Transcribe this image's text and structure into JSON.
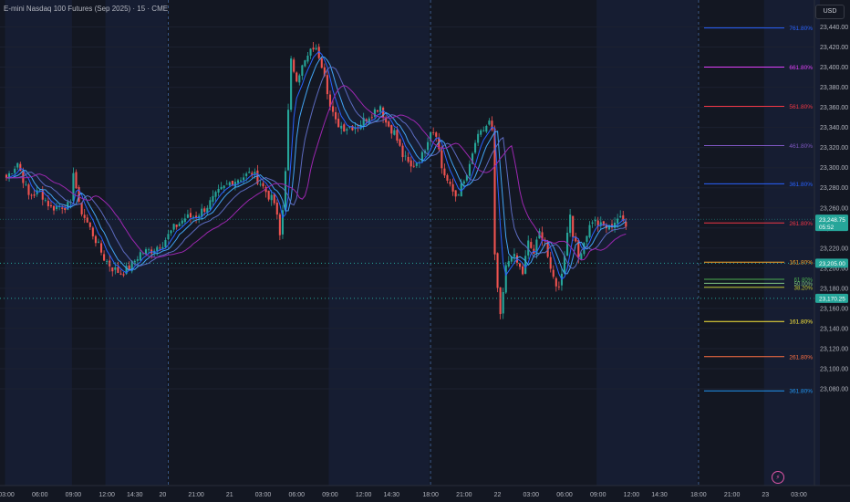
{
  "header": {
    "title": "E-mini Nasdaq 100 Futures (Sep 2025) · 15 · CME",
    "currency_button": "USD",
    "alert_icon": "⚡"
  },
  "colors": {
    "bg": "#131722",
    "session": "#161d32",
    "grid": "#1e2433",
    "up": "#26a69a",
    "down": "#ef5350",
    "text": "#b2b5be"
  },
  "chart_data": {
    "type": "candlestick",
    "ylim": [
      23070,
      23450
    ],
    "y_ticks": [
      "23,440.00",
      "23,420.00",
      "23,400.00",
      "23,380.00",
      "23,360.00",
      "23,340.00",
      "23,320.00",
      "23,300.00",
      "23,280.00",
      "23,260.00",
      "23,240.00",
      "23,220.00",
      "23,200.00",
      "23,180.00",
      "23,160.00",
      "23,140.00",
      "23,120.00",
      "23,100.00",
      "23,080.00"
    ],
    "x_ticks": [
      {
        "label": "03:00",
        "t": 0
      },
      {
        "label": "06:00",
        "t": 12
      },
      {
        "label": "09:00",
        "t": 24
      },
      {
        "label": "12:00",
        "t": 36
      },
      {
        "label": "14:30",
        "t": 46
      },
      {
        "label": "20",
        "t": 56
      },
      {
        "label": "21:00",
        "t": 68
      },
      {
        "label": "21",
        "t": 80
      },
      {
        "label": "03:00",
        "t": 92
      },
      {
        "label": "06:00",
        "t": 104
      },
      {
        "label": "09:00",
        "t": 116
      },
      {
        "label": "12:00",
        "t": 128
      },
      {
        "label": "14:30",
        "t": 138
      },
      {
        "label": "18:00",
        "t": 152
      },
      {
        "label": "21:00",
        "t": 164
      },
      {
        "label": "22",
        "t": 176
      },
      {
        "label": "03:00",
        "t": 188
      },
      {
        "label": "06:00",
        "t": 200
      },
      {
        "label": "09:00",
        "t": 212
      },
      {
        "label": "12:00",
        "t": 224
      },
      {
        "label": "14:30",
        "t": 234
      },
      {
        "label": "18:00",
        "t": 248
      },
      {
        "label": "21:00",
        "t": 260
      },
      {
        "label": "23",
        "t": 272
      },
      {
        "label": "03:00",
        "t": 284
      }
    ],
    "session_bands": [
      [
        0,
        24
      ],
      [
        36,
        58
      ],
      [
        116,
        152
      ],
      [
        212,
        248
      ],
      [
        272,
        292
      ]
    ],
    "day_lines": [
      58,
      152,
      248
    ],
    "trend_path": [
      [
        0,
        23290
      ],
      [
        4,
        23305
      ],
      [
        8,
        23272
      ],
      [
        12,
        23276
      ],
      [
        16,
        23260
      ],
      [
        20,
        23262
      ],
      [
        23,
        23262
      ],
      [
        24,
        23298
      ],
      [
        26,
        23262
      ],
      [
        29,
        23245
      ],
      [
        32,
        23228
      ],
      [
        35,
        23210
      ],
      [
        38,
        23200
      ],
      [
        41,
        23195
      ],
      [
        44,
        23200
      ],
      [
        48,
        23215
      ],
      [
        52,
        23218
      ],
      [
        56,
        23225
      ],
      [
        60,
        23240
      ],
      [
        64,
        23250
      ],
      [
        68,
        23252
      ],
      [
        72,
        23262
      ],
      [
        76,
        23275
      ],
      [
        80,
        23285
      ],
      [
        84,
        23290
      ],
      [
        88,
        23295
      ],
      [
        91,
        23285
      ],
      [
        94,
        23272
      ],
      [
        96,
        23265
      ],
      [
        97,
        23250
      ],
      [
        98,
        23232
      ],
      [
        99,
        23258
      ],
      [
        100,
        23300
      ],
      [
        101,
        23355
      ],
      [
        102,
        23405
      ],
      [
        104,
        23390
      ],
      [
        108,
        23410
      ],
      [
        110,
        23420
      ],
      [
        112,
        23412
      ],
      [
        114,
        23395
      ],
      [
        116,
        23360
      ],
      [
        118,
        23345
      ],
      [
        121,
        23340
      ],
      [
        126,
        23342
      ],
      [
        130,
        23352
      ],
      [
        134,
        23362
      ],
      [
        136,
        23345
      ],
      [
        139,
        23335
      ],
      [
        142,
        23312
      ],
      [
        145,
        23300
      ],
      [
        149,
        23312
      ],
      [
        152,
        23338
      ],
      [
        154,
        23335
      ],
      [
        156,
        23300
      ],
      [
        159,
        23280
      ],
      [
        161,
        23272
      ],
      [
        164,
        23285
      ],
      [
        166,
        23300
      ],
      [
        168,
        23325
      ],
      [
        171,
        23338
      ],
      [
        173,
        23345
      ],
      [
        174,
        23335
      ],
      [
        175,
        23210
      ],
      [
        177,
        23150
      ],
      [
        179,
        23200
      ],
      [
        181,
        23215
      ],
      [
        183,
        23205
      ],
      [
        185,
        23195
      ],
      [
        187,
        23225
      ],
      [
        189,
        23215
      ],
      [
        191,
        23235
      ],
      [
        193,
        23228
      ],
      [
        195,
        23195
      ],
      [
        198,
        23180
      ],
      [
        200,
        23215
      ],
      [
        202,
        23255
      ],
      [
        203,
        23235
      ],
      [
        205,
        23210
      ],
      [
        208,
        23235
      ],
      [
        210,
        23248
      ],
      [
        213,
        23242
      ],
      [
        216,
        23240
      ],
      [
        219,
        23250
      ],
      [
        222,
        23245
      ]
    ],
    "ema_series": [
      {
        "color": "#2962ff",
        "lag": 6,
        "smooth": 0.42
      },
      {
        "color": "#42a5f5",
        "lag": 10,
        "smooth": 0.3
      },
      {
        "color": "#5c6bc0",
        "lag": 16,
        "smooth": 0.2
      },
      {
        "color": "#9c27b0",
        "lag": 30,
        "smooth": 0.12
      }
    ],
    "fib_upper": [
      {
        "label": "761.80%",
        "price": 23439,
        "color": "#2962ff"
      },
      {
        "label": "661.80%",
        "price": 23400,
        "color": "#e040fb"
      },
      {
        "label": "561.80%",
        "price": 23361,
        "color": "#f23645"
      },
      {
        "label": "461.80%",
        "price": 23322,
        "color": "#7e57c2"
      },
      {
        "label": "361.80%",
        "price": 23284,
        "color": "#2962ff"
      },
      {
        "label": "261.80%",
        "price": 23245,
        "color": "#f23645"
      },
      {
        "label": "161.80%",
        "price": 23206,
        "color": "#ffa726"
      }
    ],
    "fib_cluster": [
      {
        "label": "61.80%",
        "price": 23189,
        "color": "#4caf50"
      },
      {
        "label": "50.00%",
        "price": 23185,
        "color": "#81c784"
      },
      {
        "label": "38.20%",
        "price": 23181,
        "color": "#c0ca33"
      }
    ],
    "fib_lower": [
      {
        "label": "161.80%",
        "price": 23147,
        "color": "#ffeb3b"
      },
      {
        "label": "261.80%",
        "price": 23112,
        "color": "#ff7043"
      },
      {
        "label": "361.80%",
        "price": 23078,
        "color": "#2196f3"
      }
    ],
    "dotted_levels": [
      {
        "label": "23,205.00",
        "price": 23205,
        "color": "#26a69a"
      },
      {
        "label": "23,170.25",
        "price": 23170,
        "color": "#26a69a"
      }
    ],
    "last_price": {
      "label": "23,248.75",
      "sublabel": "05:52",
      "price": 23248.75,
      "color": "#26a69a"
    }
  }
}
